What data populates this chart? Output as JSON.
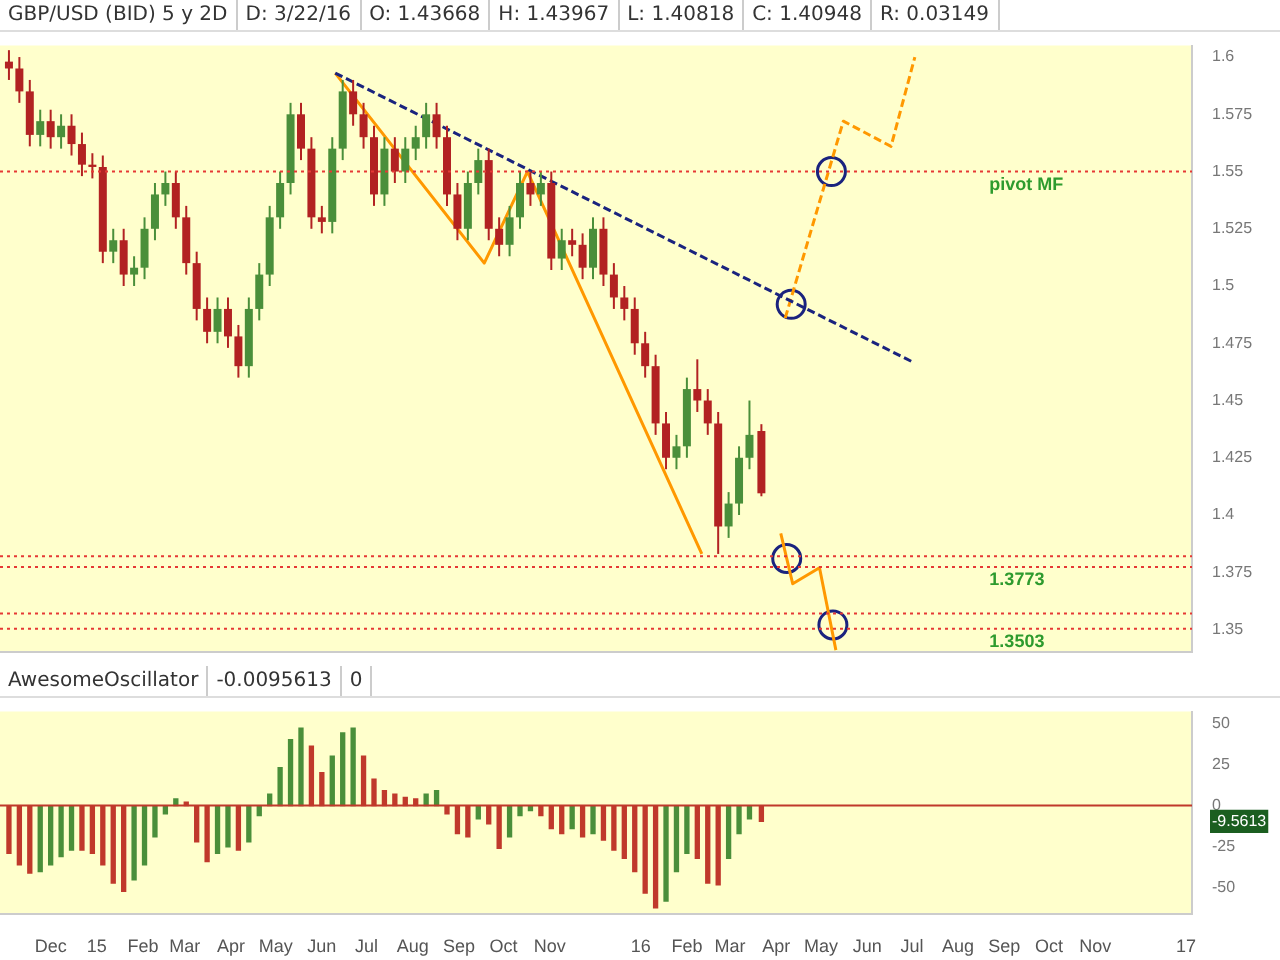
{
  "chart_data": [
    {
      "type": "candlestick",
      "title": "GBP/USD (BID) 5 y 2D",
      "annotations": [
        "D: 3/22/16",
        "O: 1.43668",
        "H: 1.43967",
        "L: 1.40818",
        "C: 1.40948",
        "R: 0.03149"
      ],
      "x": [
        "2014-11-03",
        "2014-11-10",
        "2014-11-17",
        "2014-11-24",
        "2014-12-01",
        "2014-12-08",
        "2014-12-15",
        "2014-12-22",
        "2014-12-29",
        "2015-01-05",
        "2015-01-12",
        "2015-01-19",
        "2015-01-26",
        "2015-02-02",
        "2015-02-09",
        "2015-02-16",
        "2015-02-23",
        "2015-03-02",
        "2015-03-09",
        "2015-03-16",
        "2015-03-23",
        "2015-03-30",
        "2015-04-06",
        "2015-04-13",
        "2015-04-20",
        "2015-04-27",
        "2015-05-04",
        "2015-05-11",
        "2015-05-18",
        "2015-05-25",
        "2015-06-01",
        "2015-06-08",
        "2015-06-15",
        "2015-06-22",
        "2015-06-29",
        "2015-07-06",
        "2015-07-13",
        "2015-07-20",
        "2015-07-27",
        "2015-08-03",
        "2015-08-10",
        "2015-08-17",
        "2015-08-24",
        "2015-08-31",
        "2015-09-07",
        "2015-09-14",
        "2015-09-21",
        "2015-09-28",
        "2015-10-05",
        "2015-10-12",
        "2015-10-19",
        "2015-10-26",
        "2015-11-02",
        "2015-11-09",
        "2015-11-16",
        "2015-11-23",
        "2015-11-30",
        "2015-12-07",
        "2015-12-14",
        "2015-12-21",
        "2015-12-28",
        "2016-01-04",
        "2016-01-11",
        "2016-01-18",
        "2016-01-25",
        "2016-02-01",
        "2016-02-08",
        "2016-02-15",
        "2016-02-22",
        "2016-02-29",
        "2016-03-07",
        "2016-03-14",
        "2016-03-22"
      ],
      "ohlc": [
        [
          1.598,
          1.603,
          1.59,
          1.595
        ],
        [
          1.595,
          1.6,
          1.58,
          1.585
        ],
        [
          1.585,
          1.59,
          1.561,
          1.566
        ],
        [
          1.566,
          1.577,
          1.561,
          1.572
        ],
        [
          1.572,
          1.577,
          1.56,
          1.565
        ],
        [
          1.565,
          1.575,
          1.56,
          1.57
        ],
        [
          1.57,
          1.575,
          1.557,
          1.562
        ],
        [
          1.562,
          1.567,
          1.548,
          1.553
        ],
        [
          1.553,
          1.558,
          1.547,
          1.552
        ],
        [
          1.552,
          1.557,
          1.51,
          1.515
        ],
        [
          1.515,
          1.525,
          1.51,
          1.52
        ],
        [
          1.52,
          1.525,
          1.5,
          1.505
        ],
        [
          1.505,
          1.513,
          1.5,
          1.508
        ],
        [
          1.508,
          1.53,
          1.503,
          1.525
        ],
        [
          1.525,
          1.545,
          1.52,
          1.54
        ],
        [
          1.54,
          1.55,
          1.535,
          1.545
        ],
        [
          1.545,
          1.55,
          1.525,
          1.53
        ],
        [
          1.53,
          1.535,
          1.505,
          1.51
        ],
        [
          1.51,
          1.515,
          1.485,
          1.49
        ],
        [
          1.49,
          1.495,
          1.475,
          1.48
        ],
        [
          1.48,
          1.495,
          1.475,
          1.49
        ],
        [
          1.49,
          1.495,
          1.473,
          1.478
        ],
        [
          1.478,
          1.483,
          1.46,
          1.465
        ],
        [
          1.465,
          1.495,
          1.46,
          1.49
        ],
        [
          1.49,
          1.51,
          1.485,
          1.505
        ],
        [
          1.505,
          1.535,
          1.5,
          1.53
        ],
        [
          1.53,
          1.55,
          1.525,
          1.545
        ],
        [
          1.545,
          1.58,
          1.54,
          1.575
        ],
        [
          1.575,
          1.58,
          1.555,
          1.56
        ],
        [
          1.56,
          1.565,
          1.525,
          1.53
        ],
        [
          1.53,
          1.535,
          1.523,
          1.528
        ],
        [
          1.528,
          1.565,
          1.523,
          1.56
        ],
        [
          1.56,
          1.59,
          1.555,
          1.585
        ],
        [
          1.585,
          1.59,
          1.57,
          1.575
        ],
        [
          1.575,
          1.58,
          1.56,
          1.565
        ],
        [
          1.565,
          1.57,
          1.535,
          1.54
        ],
        [
          1.54,
          1.565,
          1.535,
          1.56
        ],
        [
          1.56,
          1.565,
          1.545,
          1.55
        ],
        [
          1.55,
          1.565,
          1.545,
          1.56
        ],
        [
          1.56,
          1.57,
          1.555,
          1.565
        ],
        [
          1.565,
          1.58,
          1.56,
          1.575
        ],
        [
          1.575,
          1.58,
          1.56,
          1.565
        ],
        [
          1.565,
          1.57,
          1.535,
          1.54
        ],
        [
          1.54,
          1.545,
          1.52,
          1.525
        ],
        [
          1.525,
          1.55,
          1.52,
          1.545
        ],
        [
          1.545,
          1.56,
          1.54,
          1.555
        ],
        [
          1.555,
          1.56,
          1.52,
          1.525
        ],
        [
          1.525,
          1.53,
          1.513,
          1.518
        ],
        [
          1.518,
          1.535,
          1.513,
          1.53
        ],
        [
          1.53,
          1.55,
          1.525,
          1.545
        ],
        [
          1.545,
          1.55,
          1.535,
          1.54
        ],
        [
          1.54,
          1.55,
          1.535,
          1.545
        ],
        [
          1.545,
          1.55,
          1.507,
          1.512
        ],
        [
          1.512,
          1.525,
          1.507,
          1.52
        ],
        [
          1.52,
          1.525,
          1.513,
          1.518
        ],
        [
          1.518,
          1.523,
          1.503,
          1.508
        ],
        [
          1.508,
          1.53,
          1.503,
          1.525
        ],
        [
          1.525,
          1.53,
          1.5,
          1.505
        ],
        [
          1.505,
          1.51,
          1.49,
          1.495
        ],
        [
          1.495,
          1.5,
          1.485,
          1.49
        ],
        [
          1.49,
          1.495,
          1.47,
          1.475
        ],
        [
          1.475,
          1.48,
          1.46,
          1.465
        ],
        [
          1.465,
          1.47,
          1.435,
          1.44
        ],
        [
          1.44,
          1.445,
          1.42,
          1.425
        ],
        [
          1.425,
          1.435,
          1.42,
          1.43
        ],
        [
          1.43,
          1.46,
          1.425,
          1.455
        ],
        [
          1.455,
          1.468,
          1.445,
          1.45
        ],
        [
          1.45,
          1.455,
          1.435,
          1.44
        ],
        [
          1.44,
          1.445,
          1.383,
          1.395
        ],
        [
          1.395,
          1.41,
          1.39,
          1.405
        ],
        [
          1.405,
          1.43,
          1.4,
          1.425
        ],
        [
          1.425,
          1.45,
          1.42,
          1.435
        ],
        [
          1.43668,
          1.43967,
          1.40818,
          1.40948
        ]
      ],
      "series": [
        {
          "type": "line",
          "color": "#1a237e",
          "line_style": "dashed",
          "marker": "none",
          "x": [
            "2015-06-10",
            "2016-07-01"
          ],
          "values": [
            1.593,
            1.467
          ]
        },
        {
          "type": "line",
          "color": "#ff9800",
          "line_style": "solid",
          "marker": "none",
          "x": [
            "2015-06-10",
            "2015-09-18",
            "2015-10-17",
            "2016-02-11"
          ],
          "values": [
            1.593,
            1.51,
            1.55,
            1.383
          ]
        },
        {
          "type": "line",
          "color": "#ff9800",
          "line_style": "dashed",
          "marker": "none",
          "x": [
            "2016-04-07",
            "2016-05-16",
            "2016-06-17",
            "2016-07-03"
          ],
          "values": [
            1.486,
            1.572,
            1.561,
            1.6
          ]
        },
        {
          "type": "line",
          "color": "#ff9800",
          "line_style": "solid",
          "marker": "none",
          "x": [
            "2016-04-04",
            "2016-04-12",
            "2016-04-30",
            "2016-05-11"
          ],
          "values": [
            1.392,
            1.37,
            1.377,
            1.341
          ]
        },
        {
          "type": "scatter",
          "color": "#1a237e",
          "marker": "circle",
          "x": [
            "2016-05-08",
            "2016-04-11",
            "2016-04-08",
            "2016-05-09"
          ],
          "values": [
            1.55,
            1.492,
            1.381,
            1.352
          ]
        }
      ],
      "ref_lines": [
        {
          "axis": "y",
          "value": 1.55,
          "label": "pivot MF",
          "color": "#e53935",
          "line_style": "dotted"
        },
        {
          "axis": "y",
          "value": 1.382,
          "color": "#e53935",
          "line_style": "dotted"
        },
        {
          "axis": "y",
          "value": 1.3773,
          "label": "1.3773",
          "color": "#e53935",
          "line_style": "dotted"
        },
        {
          "axis": "y",
          "value": 1.357,
          "color": "#e53935",
          "line_style": "dotted"
        },
        {
          "axis": "y",
          "value": 1.3503,
          "label": "1.3503",
          "color": "#e53935",
          "line_style": "dotted"
        }
      ],
      "xlim": [
        "2014-10-28",
        "2017-01-05"
      ],
      "ylim": [
        1.34,
        1.605
      ],
      "yticks": [
        1.35,
        1.375,
        1.4,
        1.425,
        1.45,
        1.475,
        1.5,
        1.525,
        1.55,
        1.575,
        1.6
      ],
      "tick_labels": "y"
    },
    {
      "type": "bar",
      "title": "AwesomeOscillator",
      "annotations": [
        "-0.0095613",
        "0"
      ],
      "x": [
        "2014-11-03",
        "2014-11-10",
        "2014-11-17",
        "2014-11-24",
        "2014-12-01",
        "2014-12-08",
        "2014-12-15",
        "2014-12-22",
        "2014-12-29",
        "2015-01-05",
        "2015-01-12",
        "2015-01-19",
        "2015-01-26",
        "2015-02-02",
        "2015-02-09",
        "2015-02-16",
        "2015-02-23",
        "2015-03-02",
        "2015-03-09",
        "2015-03-16",
        "2015-03-23",
        "2015-03-30",
        "2015-04-06",
        "2015-04-13",
        "2015-04-20",
        "2015-04-27",
        "2015-05-04",
        "2015-05-11",
        "2015-05-18",
        "2015-05-25",
        "2015-06-01",
        "2015-06-08",
        "2015-06-15",
        "2015-06-22",
        "2015-06-29",
        "2015-07-06",
        "2015-07-13",
        "2015-07-20",
        "2015-07-27",
        "2015-08-03",
        "2015-08-10",
        "2015-08-17",
        "2015-08-24",
        "2015-08-31",
        "2015-09-07",
        "2015-09-14",
        "2015-09-21",
        "2015-09-28",
        "2015-10-05",
        "2015-10-12",
        "2015-10-19",
        "2015-10-26",
        "2015-11-02",
        "2015-11-09",
        "2015-11-16",
        "2015-11-23",
        "2015-11-30",
        "2015-12-07",
        "2015-12-14",
        "2015-12-21",
        "2015-12-28",
        "2016-01-04",
        "2016-01-11",
        "2016-01-18",
        "2016-01-25",
        "2016-02-01",
        "2016-02-08",
        "2016-02-15",
        "2016-02-22",
        "2016-02-29",
        "2016-03-07",
        "2016-03-14",
        "2016-03-22"
      ],
      "values": [
        -29,
        -36,
        -41,
        -40,
        -36,
        -31,
        -27,
        -27,
        -29,
        -36,
        -47,
        -52,
        -45,
        -36,
        -19,
        -5,
        4,
        2,
        -22,
        -34,
        -29,
        -25,
        -27,
        -22,
        -6,
        7,
        23,
        40,
        47,
        36,
        20,
        30,
        44,
        47,
        30,
        16,
        9,
        7,
        5,
        4,
        7,
        9,
        -5,
        -17,
        -19,
        -8,
        -11,
        -26,
        -19,
        -6,
        -3,
        -6,
        -14,
        -17,
        -14,
        -19,
        -17,
        -21,
        -27,
        -32,
        -40,
        -53,
        -62,
        -58,
        -40,
        -29,
        -32,
        -47,
        -48,
        -32,
        -17,
        -8,
        -9.5613
      ],
      "colors": [
        "#c0392b",
        "#c0392b",
        "#c0392b",
        "#4a8f3a",
        "#4a8f3a",
        "#4a8f3a",
        "#4a8f3a",
        "#c0392b",
        "#c0392b",
        "#c0392b",
        "#c0392b",
        "#c0392b",
        "#4a8f3a",
        "#4a8f3a",
        "#4a8f3a",
        "#4a8f3a",
        "#4a8f3a",
        "#c0392b",
        "#c0392b",
        "#c0392b",
        "#4a8f3a",
        "#4a8f3a",
        "#c0392b",
        "#4a8f3a",
        "#4a8f3a",
        "#4a8f3a",
        "#4a8f3a",
        "#4a8f3a",
        "#4a8f3a",
        "#c0392b",
        "#c0392b",
        "#4a8f3a",
        "#4a8f3a",
        "#4a8f3a",
        "#c0392b",
        "#c0392b",
        "#c0392b",
        "#c0392b",
        "#c0392b",
        "#c0392b",
        "#4a8f3a",
        "#4a8f3a",
        "#c0392b",
        "#c0392b",
        "#c0392b",
        "#4a8f3a",
        "#c0392b",
        "#c0392b",
        "#4a8f3a",
        "#4a8f3a",
        "#4a8f3a",
        "#c0392b",
        "#c0392b",
        "#c0392b",
        "#4a8f3a",
        "#c0392b",
        "#4a8f3a",
        "#c0392b",
        "#c0392b",
        "#c0392b",
        "#c0392b",
        "#c0392b",
        "#c0392b",
        "#4a8f3a",
        "#4a8f3a",
        "#4a8f3a",
        "#c0392b",
        "#c0392b",
        "#c0392b",
        "#4a8f3a",
        "#4a8f3a",
        "#4a8f3a",
        "#c0392b"
      ],
      "ref_lines": [
        {
          "axis": "y",
          "value": 0,
          "color": "#c0392b"
        }
      ],
      "xlim": [
        "2014-10-28",
        "2017-01-05"
      ],
      "xticks": [
        {
          "value": "2014-12-01",
          "label": "Dec"
        },
        {
          "value": "2015-01-01",
          "label": "15"
        },
        {
          "value": "2015-02-01",
          "label": "Feb"
        },
        {
          "value": "2015-03-01",
          "label": "Mar"
        },
        {
          "value": "2015-04-01",
          "label": "Apr"
        },
        {
          "value": "2015-05-01",
          "label": "May"
        },
        {
          "value": "2015-06-01",
          "label": "Jun"
        },
        {
          "value": "2015-07-01",
          "label": "Jul"
        },
        {
          "value": "2015-08-01",
          "label": "Aug"
        },
        {
          "value": "2015-09-01",
          "label": "Sep"
        },
        {
          "value": "2015-10-01",
          "label": "Oct"
        },
        {
          "value": "2015-11-01",
          "label": "Nov"
        },
        {
          "value": "2016-01-01",
          "label": "16"
        },
        {
          "value": "2016-02-01",
          "label": "Feb"
        },
        {
          "value": "2016-03-01",
          "label": "Mar"
        },
        {
          "value": "2016-04-01",
          "label": "Apr"
        },
        {
          "value": "2016-05-01",
          "label": "May"
        },
        {
          "value": "2016-06-01",
          "label": "Jun"
        },
        {
          "value": "2016-07-01",
          "label": "Jul"
        },
        {
          "value": "2016-08-01",
          "label": "Aug"
        },
        {
          "value": "2016-09-01",
          "label": "Sep"
        },
        {
          "value": "2016-10-01",
          "label": "Oct"
        },
        {
          "value": "2016-11-01",
          "label": "Nov"
        },
        {
          "value": "2017-01-01",
          "label": "17"
        }
      ],
      "ylim": [
        -66,
        57
      ],
      "yticks": [
        -50,
        -25,
        0,
        25,
        50,
        {
          "value": -9.5613,
          "label": "-9.5613"
        }
      ]
    }
  ]
}
